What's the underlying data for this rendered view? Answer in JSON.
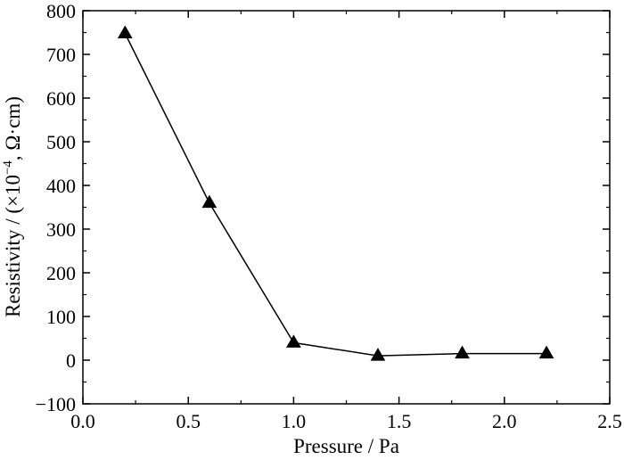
{
  "chart_data": {
    "type": "line",
    "title": "",
    "xlabel": "Pressure / Pa",
    "ylabel_main": "Resistivity / (×10",
    "ylabel_exp": "−4",
    "ylabel_tail": ", Ω·cm)",
    "xlim": [
      0.0,
      2.5
    ],
    "ylim": [
      -100,
      800
    ],
    "x_ticks": [
      0.0,
      0.5,
      1.0,
      1.5,
      2.0,
      2.5
    ],
    "x_tick_labels": [
      "0.0",
      "0.5",
      "1.0",
      "1.5",
      "2.0",
      "2.5"
    ],
    "y_ticks": [
      -100,
      0,
      100,
      200,
      300,
      400,
      500,
      600,
      700,
      800
    ],
    "y_tick_labels": [
      "−100",
      "0",
      "100",
      "200",
      "300",
      "400",
      "500",
      "600",
      "700",
      "800"
    ],
    "grid": false,
    "legend": "none",
    "marker": "triangle",
    "color": "#000000",
    "series": [
      {
        "x": [
          0.2,
          0.6,
          1.0,
          1.4,
          1.8,
          2.2
        ],
        "y": [
          748,
          360,
          40,
          10,
          15,
          15
        ]
      }
    ]
  }
}
